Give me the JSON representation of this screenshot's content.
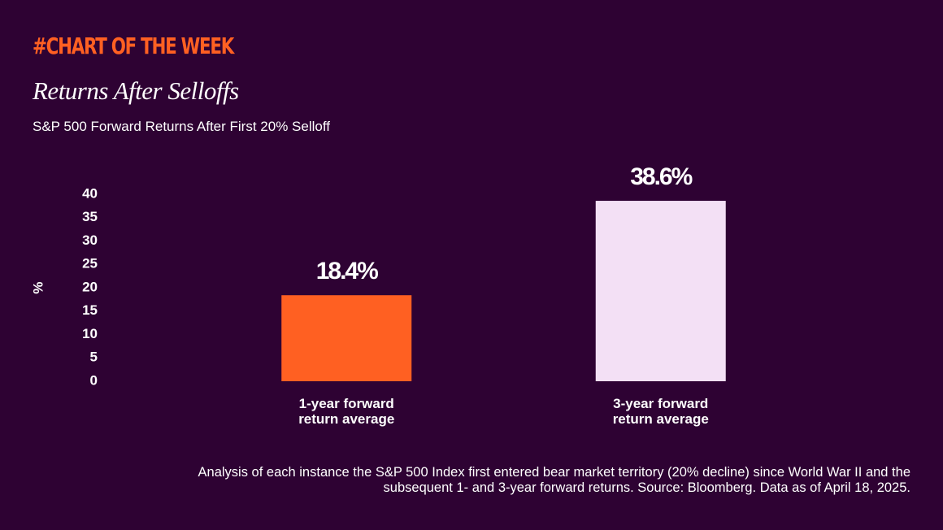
{
  "header": {
    "kicker": "#CHART OF THE WEEK"
  },
  "chart_data": {
    "type": "bar",
    "title": "Returns After Selloffs",
    "subtitle": "S&P 500 Forward Returns After First 20% Selloff",
    "y_label": "%",
    "categories": [
      "1-year forward return average",
      "3-year forward return average"
    ],
    "values": [
      18.4,
      38.6
    ],
    "value_labels": [
      "18.4%",
      "38.6%"
    ],
    "colors": [
      "#ff6022",
      "#f3e0f5"
    ],
    "ylim": [
      0,
      40
    ],
    "yticks": [
      0,
      5,
      10,
      15,
      20,
      25,
      30,
      35,
      40
    ],
    "grid": false,
    "note": "Analysis of each instance the S&P 500 Index first entered bear market territory (20% decline) since World War II and the subsequent 1- and 3-year forward returns. Source: Bloomberg. Data as of April 18, 2025."
  }
}
